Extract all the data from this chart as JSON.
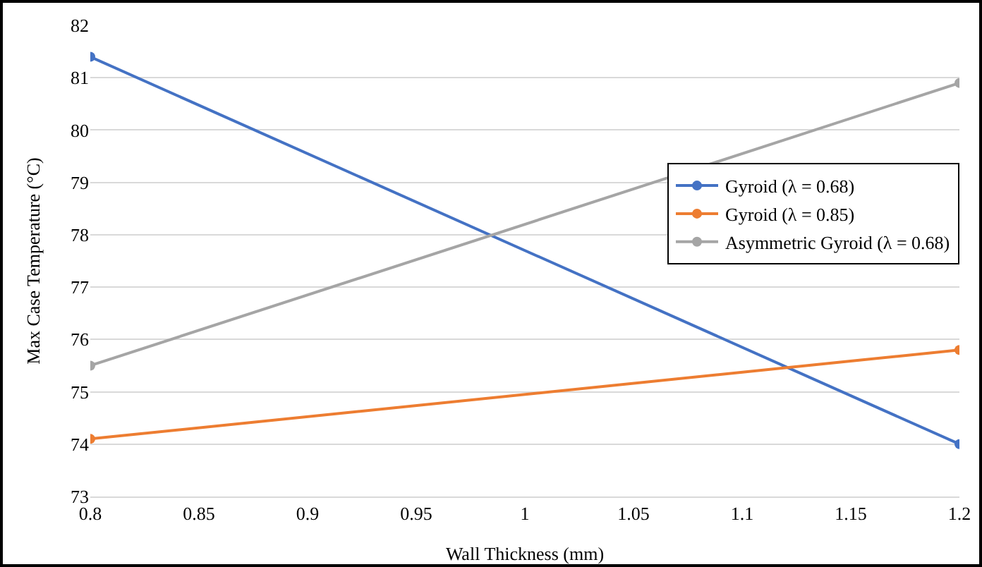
{
  "chart_data": {
    "type": "line",
    "xlabel": "Wall Thickness (mm)",
    "ylabel": "Max Case Temperature (°C)",
    "x": [
      0.8,
      1.2
    ],
    "series": [
      {
        "name": "Gyroid (λ = 0.68)",
        "color": "#4472c4",
        "values": [
          81.4,
          74.0
        ]
      },
      {
        "name": "Gyroid (λ = 0.85)",
        "color": "#ed7d31",
        "values": [
          74.1,
          75.8
        ]
      },
      {
        "name": "Asymmetric Gyroid (λ = 0.68)",
        "color": "#a5a5a5",
        "values": [
          75.5,
          80.9
        ]
      }
    ],
    "xlim": [
      0.8,
      1.2
    ],
    "xticks": [
      0.8,
      0.85,
      0.9,
      0.95,
      1,
      1.05,
      1.1,
      1.15,
      1.2
    ],
    "ylim": [
      73,
      82
    ],
    "yticks": [
      73,
      74,
      75,
      76,
      77,
      78,
      79,
      80,
      81,
      82
    ],
    "grid": "y",
    "legend": "right",
    "marker": "circle",
    "line_style": "solid"
  }
}
